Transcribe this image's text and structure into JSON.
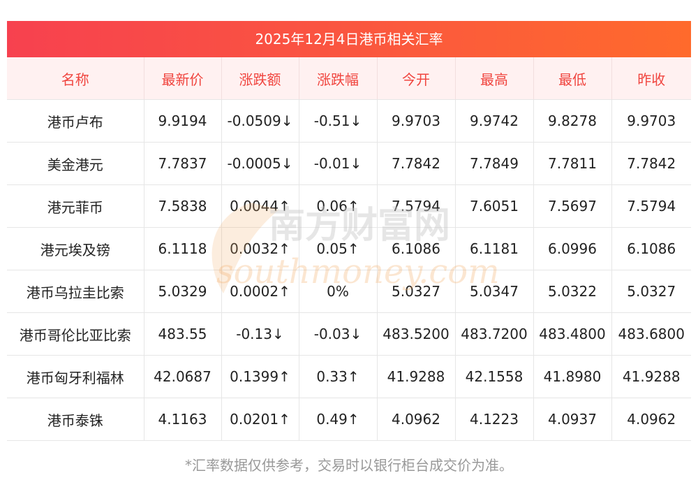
{
  "title": "2025年12月4日港币相关汇率",
  "headers": [
    "名称",
    "最新价",
    "涨跌额",
    "涨跌幅",
    "今开",
    "最高",
    "最低",
    "昨收"
  ],
  "rows": [
    {
      "name": "港币卢布",
      "latest": "9.9194",
      "change": "-0.0509↓",
      "pct": "-0.51↓",
      "open": "9.9703",
      "high": "9.9742",
      "low": "9.8278",
      "prev": "9.9703",
      "latest_trend": "down",
      "change_trend": "down",
      "pct_trend": "down"
    },
    {
      "name": "美金港元",
      "latest": "7.7837",
      "change": "-0.0005↓",
      "pct": "-0.01↓",
      "open": "7.7842",
      "high": "7.7849",
      "low": "7.7811",
      "prev": "7.7842",
      "latest_trend": "down",
      "change_trend": "down",
      "pct_trend": "down"
    },
    {
      "name": "港元菲币",
      "latest": "7.5838",
      "change": "0.0044↑",
      "pct": "0.06↑",
      "open": "7.5794",
      "high": "7.6051",
      "low": "7.5697",
      "prev": "7.5794",
      "latest_trend": "up",
      "change_trend": "up",
      "pct_trend": "up"
    },
    {
      "name": "港元埃及镑",
      "latest": "6.1118",
      "change": "0.0032↑",
      "pct": "0.05↑",
      "open": "6.1086",
      "high": "6.1181",
      "low": "6.0996",
      "prev": "6.1086",
      "latest_trend": "up",
      "change_trend": "up",
      "pct_trend": "up"
    },
    {
      "name": "港币乌拉圭比索",
      "latest": "5.0329",
      "change": "0.0002↑",
      "pct": "0%",
      "open": "5.0327",
      "high": "5.0347",
      "low": "5.0322",
      "prev": "5.0327",
      "latest_trend": "flat",
      "change_trend": "up",
      "pct_trend": "flat"
    },
    {
      "name": "港币哥伦比亚比索",
      "latest": "483.55",
      "change": "-0.13↓",
      "pct": "-0.03↓",
      "open": "483.5200",
      "high": "483.7200",
      "low": "483.4800",
      "prev": "483.6800",
      "latest_trend": "down",
      "change_trend": "down",
      "pct_trend": "down"
    },
    {
      "name": "港币匈牙利福林",
      "latest": "42.0687",
      "change": "0.1399↑",
      "pct": "0.33↑",
      "open": "41.9288",
      "high": "42.1558",
      "low": "41.8980",
      "prev": "41.9288",
      "latest_trend": "up",
      "change_trend": "up",
      "pct_trend": "up"
    },
    {
      "name": "港币泰铢",
      "latest": "4.1163",
      "change": "0.0201↑",
      "pct": "0.49↑",
      "open": "4.0962",
      "high": "4.1223",
      "low": "4.0937",
      "prev": "4.0962",
      "latest_trend": "up",
      "change_trend": "up",
      "pct_trend": "up"
    }
  ],
  "watermark": {
    "cn": "南方财富网",
    "en": "southmoney.com"
  },
  "footnote": "*汇率数据仅供参考，交易时以银行柜台成交价为准。",
  "colors": {
    "up": "#e8271d",
    "down": "#1a8f25",
    "header_text": "#f0453f",
    "banner_start": "#f7414f",
    "banner_end": "#ff6a2c"
  }
}
